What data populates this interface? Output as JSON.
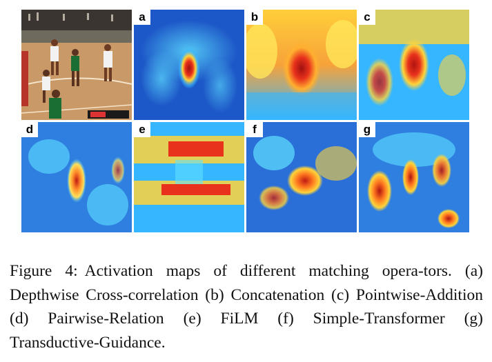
{
  "figure": {
    "panels": [
      {
        "label": "",
        "kind": "photo"
      },
      {
        "label": "a",
        "kind": "heatmap"
      },
      {
        "label": "b",
        "kind": "heatmap"
      },
      {
        "label": "c",
        "kind": "heatmap"
      },
      {
        "label": "d",
        "kind": "heatmap"
      },
      {
        "label": "e",
        "kind": "heatmap"
      },
      {
        "label": "f",
        "kind": "heatmap"
      },
      {
        "label": "g",
        "kind": "heatmap"
      }
    ],
    "colors": {
      "cold": "#1d58c8",
      "cool": "#35b6ff",
      "warm": "#ffd43a",
      "hot": "#e8321c",
      "court": "#c99a68",
      "crowd": "#3a3530"
    }
  },
  "caption": {
    "figure_label": "Figure 4:",
    "text": "Activation maps of different matching opera-­tors. (a) Depthwise Cross-correlation (b) Concatenation (c) Pointwise-Addition (d) Pairwise-Relation (e) FiLM (f) Simple-Transformer (g) Transductive-Guidance."
  }
}
